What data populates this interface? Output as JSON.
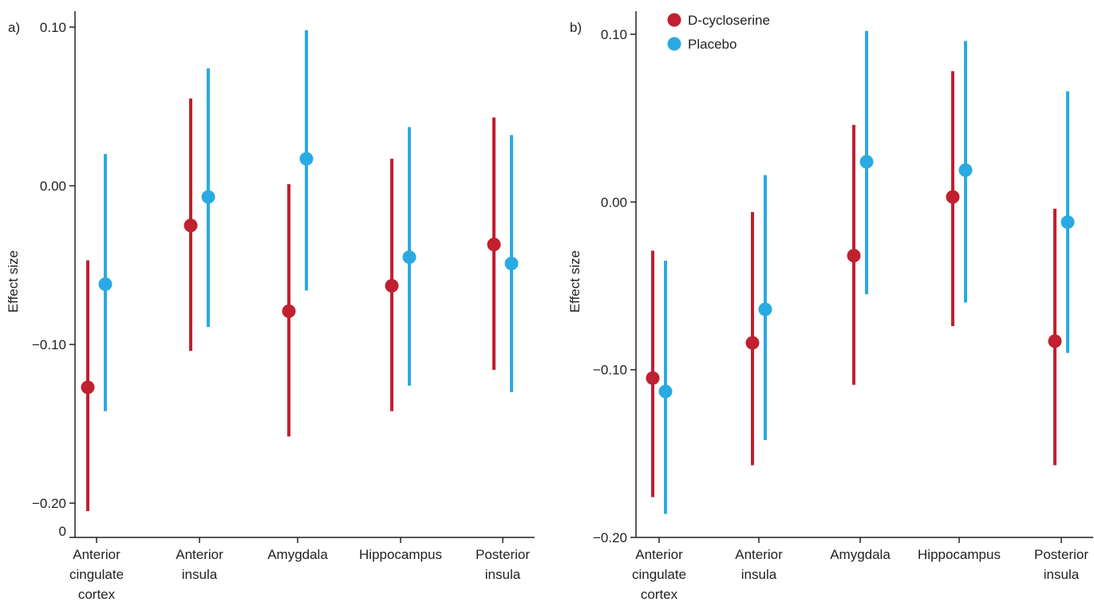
{
  "chart_data": [
    {
      "type": "scatter",
      "panel_label": "a)",
      "ylabel": "Effect size",
      "ylim": [
        -0.2,
        0.1
      ],
      "yticks": [
        0.1,
        0.0,
        -0.1,
        -0.2
      ],
      "ytick_labels": [
        "0.10",
        "0.00",
        "−0.10",
        "−0.20"
      ],
      "extra_tick_label": "0",
      "categories": [
        "Anterior cingulate cortex",
        "Anterior insula",
        "Amygdala",
        "Hippocampus",
        "Posterior insula"
      ],
      "category_lines": [
        [
          "Anterior",
          "cingulate",
          "cortex"
        ],
        [
          "Anterior",
          "insula"
        ],
        [
          "Amygdala"
        ],
        [
          "Hippocampus"
        ],
        [
          "Posterior",
          "insula"
        ]
      ],
      "series": [
        {
          "name": "D-cycloserine",
          "color": "#c0202f",
          "values": [
            -0.127,
            -0.025,
            -0.079,
            -0.063,
            -0.037
          ],
          "lower": [
            -0.205,
            -0.104,
            -0.158,
            -0.142,
            -0.116
          ],
          "upper": [
            -0.047,
            0.055,
            0.001,
            0.017,
            0.043
          ]
        },
        {
          "name": "Placebo",
          "color": "#2aaae2",
          "values": [
            -0.062,
            -0.007,
            0.017,
            -0.045,
            -0.049
          ],
          "lower": [
            -0.142,
            -0.089,
            -0.066,
            -0.126,
            -0.13
          ],
          "upper": [
            0.02,
            0.074,
            0.098,
            0.037,
            0.032
          ]
        }
      ]
    },
    {
      "type": "scatter",
      "panel_label": "b)",
      "ylabel": "Effect size",
      "ylim": [
        -0.2,
        0.1
      ],
      "yticks": [
        0.1,
        0.0,
        -0.1,
        -0.2
      ],
      "ytick_labels": [
        "0.10",
        "0.00",
        "−0.10",
        "−0.20"
      ],
      "categories": [
        "Anterior cingulate cortex",
        "Anterior insula",
        "Amygdala",
        "Hippocampus",
        "Posterior insula"
      ],
      "category_lines": [
        [
          "Anterior",
          "cingulate",
          "cortex"
        ],
        [
          "Anterior",
          "insula"
        ],
        [
          "Amygdala"
        ],
        [
          "Hippocampus"
        ],
        [
          "Posterior",
          "insula"
        ]
      ],
      "legend": {
        "position": "top-left",
        "entries": [
          {
            "label": "D-cycloserine",
            "color": "#c0202f"
          },
          {
            "label": "Placebo",
            "color": "#2aaae2"
          }
        ]
      },
      "series": [
        {
          "name": "D-cycloserine",
          "color": "#c0202f",
          "values": [
            -0.105,
            -0.084,
            -0.032,
            0.003,
            -0.083
          ],
          "lower": [
            -0.176,
            -0.157,
            -0.109,
            -0.074,
            -0.157
          ],
          "upper": [
            -0.029,
            -0.006,
            0.046,
            0.078,
            -0.004
          ]
        },
        {
          "name": "Placebo",
          "color": "#2aaae2",
          "values": [
            -0.113,
            -0.064,
            0.024,
            0.019,
            -0.012
          ],
          "lower": [
            -0.186,
            -0.142,
            -0.055,
            -0.06,
            -0.09
          ],
          "upper": [
            -0.035,
            0.016,
            0.102,
            0.096,
            0.066
          ]
        }
      ]
    }
  ]
}
